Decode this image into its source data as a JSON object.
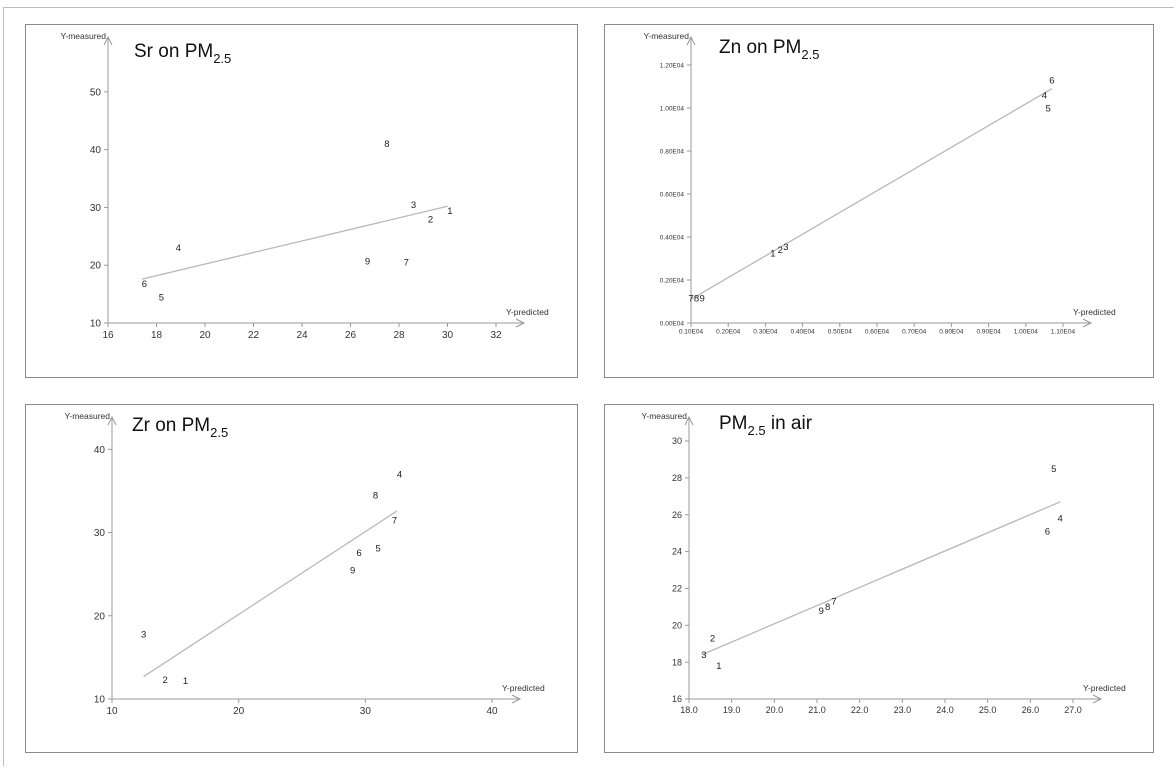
{
  "chart_data": [
    {
      "type": "scatter",
      "title": "Sr on PM",
      "title_sub": "2.5",
      "title_after": "",
      "ylabel": "Y-measured",
      "xlabel": "Y-predicted",
      "xlim": [
        16,
        32
      ],
      "ylim": [
        10,
        55
      ],
      "xticks": [
        16,
        18,
        20,
        22,
        24,
        26,
        28,
        30,
        32
      ],
      "xtick_labels": [
        "16",
        "18",
        "20",
        "22",
        "24",
        "26",
        "28",
        "30",
        "32"
      ],
      "yticks": [
        10,
        20,
        30,
        40,
        50
      ],
      "ytick_labels": [
        "10",
        "20",
        "30",
        "40",
        "50"
      ],
      "points": [
        {
          "label": "1",
          "x": 30.1,
          "y": 29.4
        },
        {
          "label": "2",
          "x": 29.3,
          "y": 28.0
        },
        {
          "label": "3",
          "x": 28.6,
          "y": 30.5
        },
        {
          "label": "4",
          "x": 18.9,
          "y": 23.0
        },
        {
          "label": "5",
          "x": 18.2,
          "y": 14.5
        },
        {
          "label": "6",
          "x": 17.5,
          "y": 16.8
        },
        {
          "label": "7",
          "x": 28.3,
          "y": 20.5
        },
        {
          "label": "8",
          "x": 27.5,
          "y": 41.0
        },
        {
          "label": "9",
          "x": 26.7,
          "y": 20.7
        }
      ],
      "fit_line": [
        [
          17.4,
          17.6
        ],
        [
          30.0,
          30.2
        ]
      ]
    },
    {
      "type": "scatter",
      "title": "Zn on PM",
      "title_sub": "2.5",
      "title_after": "",
      "ylabel": "Y-measured",
      "xlabel": "Y-predicted",
      "xlim": [
        0.1,
        1.1
      ],
      "ylim": [
        0.0,
        1.2
      ],
      "xticks": [
        0.1,
        0.2,
        0.3,
        0.4,
        0.5,
        0.6,
        0.7,
        0.8,
        0.9,
        1.0,
        1.1
      ],
      "xtick_labels": [
        "0.10E04",
        "0.20E04",
        "0.30E04",
        "0.40E04",
        "0.50E04",
        "0.60E04",
        "0.70E04",
        "0.80E04",
        "0.90E04",
        "1.00E04",
        "1.10E04"
      ],
      "yticks": [
        0.0,
        0.2,
        0.4,
        0.6,
        0.8,
        1.0,
        1.2
      ],
      "ytick_labels": [
        "0.00E04",
        "0.20E04",
        "0.40E04",
        "0.60E04",
        "0.80E04",
        "1.00E04",
        "1.20E04"
      ],
      "points": [
        {
          "label": "1",
          "x": 0.32,
          "y": 0.325
        },
        {
          "label": "2",
          "x": 0.34,
          "y": 0.34
        },
        {
          "label": "3",
          "x": 0.355,
          "y": 0.355
        },
        {
          "label": "4",
          "x": 1.05,
          "y": 1.06
        },
        {
          "label": "5",
          "x": 1.06,
          "y": 1.0
        },
        {
          "label": "6",
          "x": 1.07,
          "y": 1.13
        },
        {
          "label": "7",
          "x": 0.1,
          "y": 0.115
        },
        {
          "label": "8",
          "x": 0.115,
          "y": 0.115
        },
        {
          "label": "9",
          "x": 0.13,
          "y": 0.115
        }
      ],
      "fit_line": [
        [
          0.1,
          0.11
        ],
        [
          1.07,
          1.09
        ]
      ]
    },
    {
      "type": "scatter",
      "title": "Zr on PM",
      "title_sub": "2.5",
      "title_after": "",
      "ylabel": "Y-measured",
      "xlabel": "Y-predicted",
      "xlim": [
        10,
        40
      ],
      "ylim": [
        10,
        41
      ],
      "xticks": [
        10,
        20,
        30,
        40
      ],
      "xtick_labels": [
        "10",
        "20",
        "30",
        "40"
      ],
      "yticks": [
        10,
        20,
        30,
        40
      ],
      "ytick_labels": [
        "10",
        "20",
        "30",
        "40"
      ],
      "points": [
        {
          "label": "1",
          "x": 15.8,
          "y": 12.2
        },
        {
          "label": "2",
          "x": 14.2,
          "y": 12.3
        },
        {
          "label": "3",
          "x": 12.5,
          "y": 17.8
        },
        {
          "label": "4",
          "x": 32.7,
          "y": 37.0
        },
        {
          "label": "5",
          "x": 31.0,
          "y": 28.1
        },
        {
          "label": "6",
          "x": 29.5,
          "y": 27.6
        },
        {
          "label": "7",
          "x": 32.3,
          "y": 31.5
        },
        {
          "label": "8",
          "x": 30.8,
          "y": 34.5
        },
        {
          "label": "9",
          "x": 29.0,
          "y": 25.5
        }
      ],
      "fit_line": [
        [
          12.5,
          12.7
        ],
        [
          32.5,
          32.6
        ]
      ]
    },
    {
      "type": "scatter",
      "title": "PM",
      "title_sub": "2.5",
      "title_after": " in air",
      "ylabel": "Y-measured",
      "xlabel": "Y-predicted",
      "xlim": [
        18,
        27
      ],
      "ylim": [
        16,
        30
      ],
      "xticks": [
        18,
        19,
        20,
        21,
        22,
        23,
        24,
        25,
        26,
        27
      ],
      "xtick_labels": [
        "18.0",
        "19.0",
        "20.0",
        "21.0",
        "22.0",
        "23.0",
        "24.0",
        "25.0",
        "26.0",
        "27.0"
      ],
      "yticks": [
        16,
        18,
        20,
        22,
        24,
        26,
        28,
        30
      ],
      "ytick_labels": [
        "16",
        "18",
        "20",
        "22",
        "24",
        "26",
        "28",
        "30"
      ],
      "points": [
        {
          "label": "1",
          "x": 18.7,
          "y": 17.8
        },
        {
          "label": "2",
          "x": 18.55,
          "y": 19.3
        },
        {
          "label": "3",
          "x": 18.35,
          "y": 18.4
        },
        {
          "label": "4",
          "x": 26.7,
          "y": 25.8
        },
        {
          "label": "5",
          "x": 26.55,
          "y": 28.5
        },
        {
          "label": "6",
          "x": 26.4,
          "y": 25.1
        },
        {
          "label": "7",
          "x": 21.4,
          "y": 21.3
        },
        {
          "label": "8",
          "x": 21.25,
          "y": 21.0
        },
        {
          "label": "9",
          "x": 21.1,
          "y": 20.8
        }
      ],
      "fit_line": [
        [
          18.3,
          18.4
        ],
        [
          26.7,
          26.7
        ]
      ]
    }
  ]
}
